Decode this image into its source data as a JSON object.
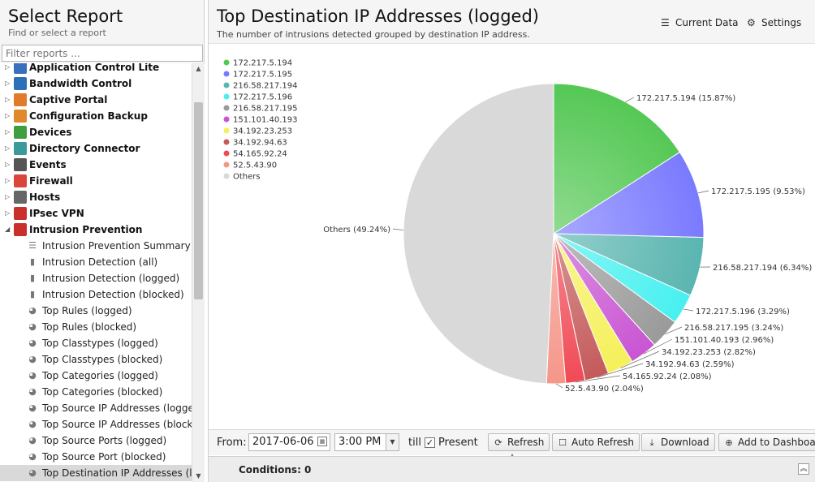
{
  "left": {
    "title": "Select Report",
    "subtitle": "Find or select a report",
    "filter_placeholder": "Filter reports ...",
    "categories": [
      {
        "label": "Application Control Lite",
        "icon": "app-control-lite-icon",
        "color": "#3a6fbf"
      },
      {
        "label": "Bandwidth Control",
        "icon": "bandwidth-control-icon",
        "color": "#2d6fb8"
      },
      {
        "label": "Captive Portal",
        "icon": "captive-portal-icon",
        "color": "#e07b2a"
      },
      {
        "label": "Configuration Backup",
        "icon": "configuration-backup-icon",
        "color": "#e0892a"
      },
      {
        "label": "Devices",
        "icon": "devices-icon",
        "color": "#3f9f3f"
      },
      {
        "label": "Directory Connector",
        "icon": "directory-connector-icon",
        "color": "#3b9a9a"
      },
      {
        "label": "Events",
        "icon": "events-icon",
        "color": "#555555"
      },
      {
        "label": "Firewall",
        "icon": "firewall-icon",
        "color": "#d9473c"
      },
      {
        "label": "Hosts",
        "icon": "hosts-icon",
        "color": "#666666"
      },
      {
        "label": "IPsec VPN",
        "icon": "ipsec-vpn-icon",
        "color": "#c9302c"
      },
      {
        "label": "Intrusion Prevention",
        "icon": "intrusion-prevention-icon",
        "color": "#c9302c"
      }
    ],
    "reports": [
      {
        "label": "Intrusion Prevention Summary",
        "icon": "text-lines-icon"
      },
      {
        "label": "Intrusion Detection (all)",
        "icon": "bar-chart-icon"
      },
      {
        "label": "Intrusion Detection (logged)",
        "icon": "bar-chart-icon"
      },
      {
        "label": "Intrusion Detection (blocked)",
        "icon": "bar-chart-icon"
      },
      {
        "label": "Top Rules (logged)",
        "icon": "pie-chart-icon"
      },
      {
        "label": "Top Rules (blocked)",
        "icon": "pie-chart-icon"
      },
      {
        "label": "Top Classtypes (logged)",
        "icon": "pie-chart-icon"
      },
      {
        "label": "Top Classtypes (blocked)",
        "icon": "pie-chart-icon"
      },
      {
        "label": "Top Categories (logged)",
        "icon": "pie-chart-icon"
      },
      {
        "label": "Top Categories (blocked)",
        "icon": "pie-chart-icon"
      },
      {
        "label": "Top Source IP Addresses (logged)",
        "icon": "pie-chart-icon"
      },
      {
        "label": "Top Source IP Addresses (blocked)",
        "icon": "pie-chart-icon"
      },
      {
        "label": "Top Source Ports (logged)",
        "icon": "pie-chart-icon"
      },
      {
        "label": "Top Source Port (blocked)",
        "icon": "pie-chart-icon"
      },
      {
        "label": "Top Destination IP Addresses (lo...",
        "icon": "pie-chart-icon"
      }
    ]
  },
  "report": {
    "title": "Top Destination IP Addresses (logged)",
    "description": "The number of intrusions detected grouped by destination IP address.",
    "current_data_label": "Current Data",
    "settings_label": "Settings"
  },
  "chart_data": {
    "type": "pie",
    "title": "",
    "legend_position": "top-left",
    "slices": [
      {
        "label": "172.217.5.194",
        "value": 15.87,
        "display": "172.217.5.194 (15.87%)",
        "color": "#55c855"
      },
      {
        "label": "172.217.5.195",
        "value": 9.53,
        "display": "172.217.5.195 (9.53%)",
        "color": "#7a7aff"
      },
      {
        "label": "216.58.217.194",
        "value": 6.34,
        "display": "216.58.217.194 (6.34%)",
        "color": "#5ab5b0"
      },
      {
        "label": "172.217.5.196",
        "value": 3.29,
        "display": "172.217.5.196 (3.29%)",
        "color": "#48f0f0"
      },
      {
        "label": "216.58.217.195",
        "value": 3.24,
        "display": "216.58.217.195 (3.24%)",
        "color": "#9a9a9a"
      },
      {
        "label": "151.101.40.193",
        "value": 2.96,
        "display": "151.101.40.193 (2.96%)",
        "color": "#c955d3"
      },
      {
        "label": "34.192.23.253",
        "value": 2.82,
        "display": "34.192.23.253 (2.82%)",
        "color": "#f5f05a"
      },
      {
        "label": "34.192.94.63",
        "value": 2.59,
        "display": "34.192.94.63 (2.59%)",
        "color": "#c45a5a"
      },
      {
        "label": "54.165.92.24",
        "value": 2.08,
        "display": "54.165.92.24 (2.08%)",
        "color": "#f04a55"
      },
      {
        "label": "52.5.43.90",
        "value": 2.04,
        "display": "52.5.43.90 (2.04%)",
        "color": "#f5968a"
      },
      {
        "label": "Others",
        "value": 49.24,
        "display": "Others (49.24%)",
        "color": "#d9d9d9"
      }
    ]
  },
  "toolbar": {
    "from_label": "From:",
    "from_date": "2017-06-06",
    "from_time": "3:00 PM",
    "till_label": "till",
    "present_label": "Present",
    "present_checked": true,
    "refresh_label": "Refresh",
    "auto_refresh_label": "Auto Refresh",
    "download_label": "Download",
    "add_dashboard_label": "Add to Dashboar"
  },
  "conditions": {
    "label": "Conditions: 0"
  }
}
